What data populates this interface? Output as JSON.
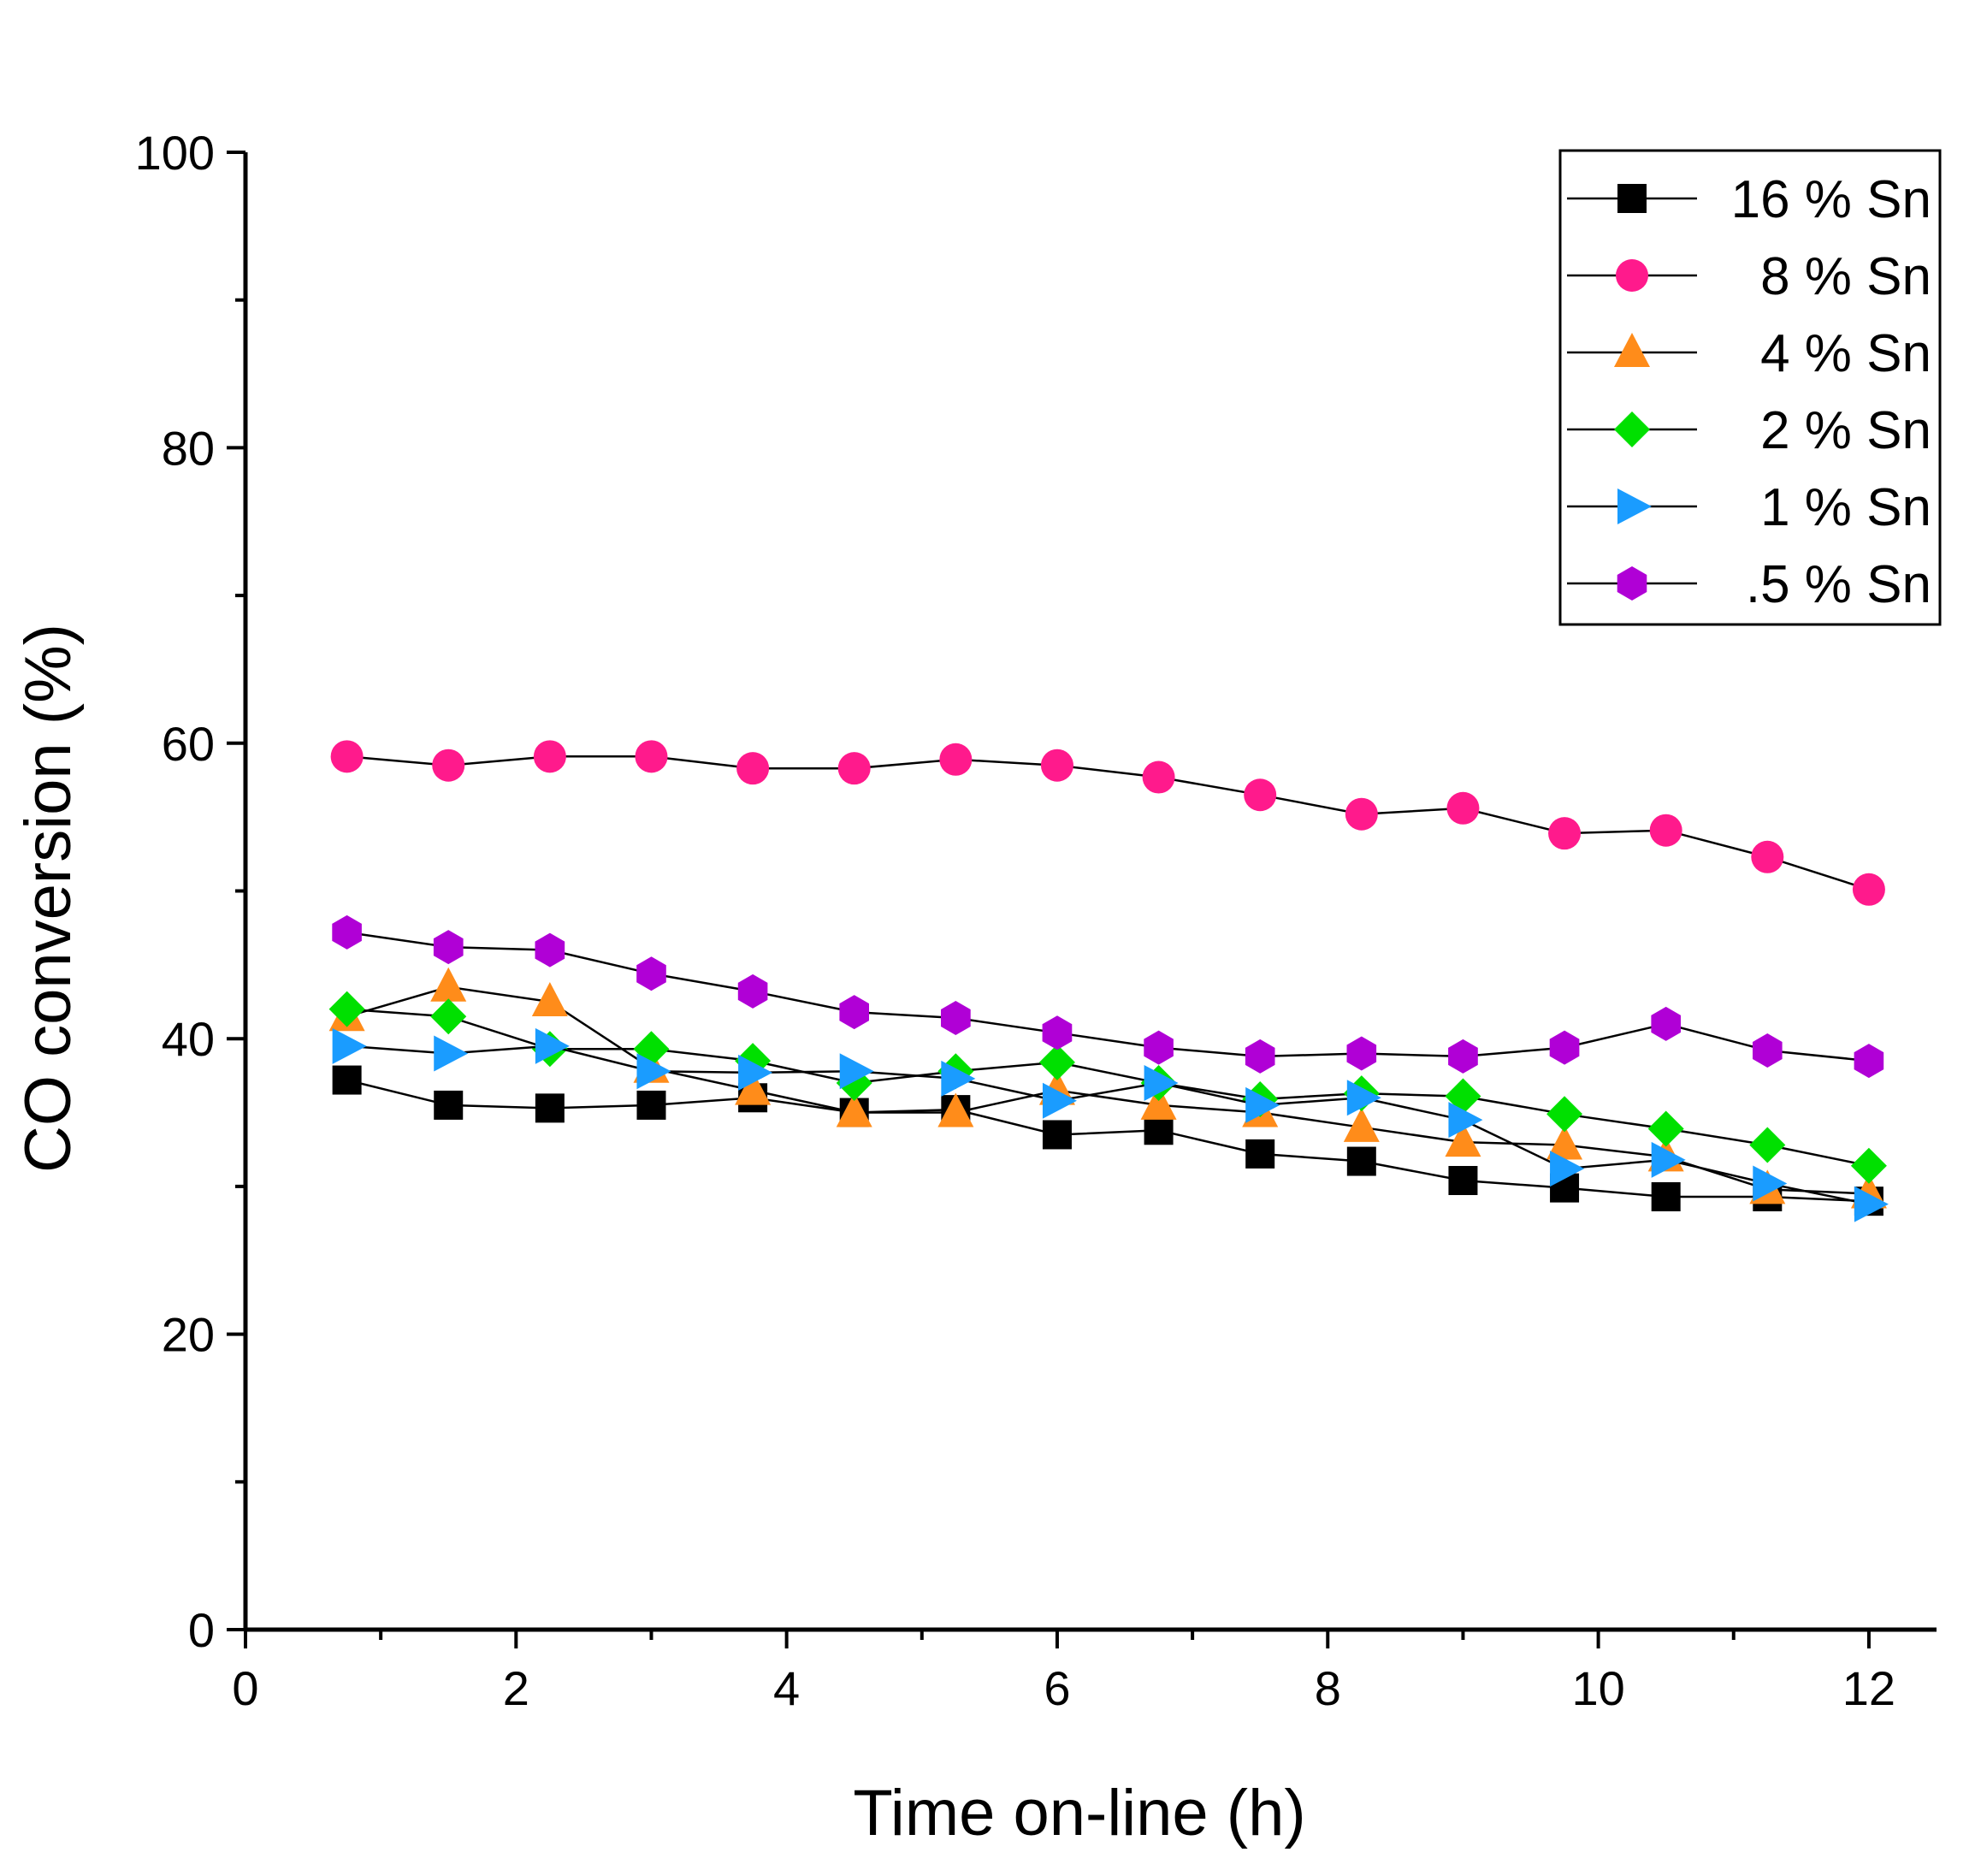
{
  "chart_data": {
    "type": "line",
    "title": "",
    "xlabel": "Time on-line (h)",
    "ylabel": "CO conversion (%)",
    "xlim": [
      0,
      12.5
    ],
    "ylim": [
      0,
      100
    ],
    "xticks": [
      0,
      2,
      4,
      6,
      8,
      10,
      12
    ],
    "yticks": [
      0,
      20,
      40,
      60,
      80,
      100
    ],
    "xtick_labels": [
      "0",
      "2",
      "4",
      "6",
      "8",
      "10",
      "12"
    ],
    "ytick_labels": [
      "0",
      "20",
      "40",
      "60",
      "80",
      "100"
    ],
    "grid": false,
    "legend_position": "top-right",
    "x": [
      0.75,
      1.5,
      2.25,
      3.0,
      3.75,
      4.5,
      5.25,
      6.0,
      6.75,
      7.5,
      8.25,
      9.0,
      9.75,
      10.5,
      11.25,
      12.0
    ],
    "series": [
      {
        "name": "16 % Sn",
        "marker": "square",
        "color": "#000000",
        "values": [
          37.2,
          35.5,
          35.3,
          35.5,
          36.0,
          35.0,
          35.2,
          33.5,
          33.8,
          32.2,
          31.7,
          30.4,
          29.9,
          29.3,
          29.3,
          29.0
        ]
      },
      {
        "name": "8 % Sn",
        "marker": "circle",
        "color": "#ff1a8c",
        "values": [
          59.1,
          58.5,
          59.1,
          59.1,
          58.3,
          58.3,
          58.9,
          58.5,
          57.7,
          56.5,
          55.2,
          55.6,
          53.9,
          54.1,
          52.3,
          50.1
        ]
      },
      {
        "name": "4 % Sn",
        "marker": "triangle-up",
        "color": "#ff8c1a",
        "values": [
          41.5,
          43.5,
          42.5,
          38.0,
          36.5,
          35.0,
          35.0,
          36.5,
          35.5,
          35.0,
          34.0,
          33.0,
          32.8,
          32.0,
          29.8,
          29.5
        ]
      },
      {
        "name": "2 % Sn",
        "marker": "diamond",
        "color": "#00e000",
        "values": [
          42.0,
          41.5,
          39.3,
          39.3,
          38.5,
          37.0,
          37.8,
          38.4,
          37.0,
          35.9,
          36.3,
          36.1,
          34.9,
          33.9,
          32.8,
          31.4
        ]
      },
      {
        "name": "1 % Sn",
        "marker": "triangle-right",
        "color": "#1a9cff",
        "values": [
          39.5,
          39.0,
          39.5,
          37.8,
          37.7,
          37.8,
          37.3,
          35.8,
          37.0,
          35.5,
          36.0,
          34.5,
          31.2,
          31.8,
          30.2,
          28.8
        ]
      },
      {
        "name": ".5 % Sn",
        "marker": "hexagon",
        "color": "#b000d6",
        "values": [
          47.2,
          46.2,
          46.0,
          44.4,
          43.2,
          41.8,
          41.4,
          40.4,
          39.4,
          38.8,
          39.0,
          38.8,
          39.4,
          41.0,
          39.2,
          38.5
        ]
      }
    ]
  }
}
